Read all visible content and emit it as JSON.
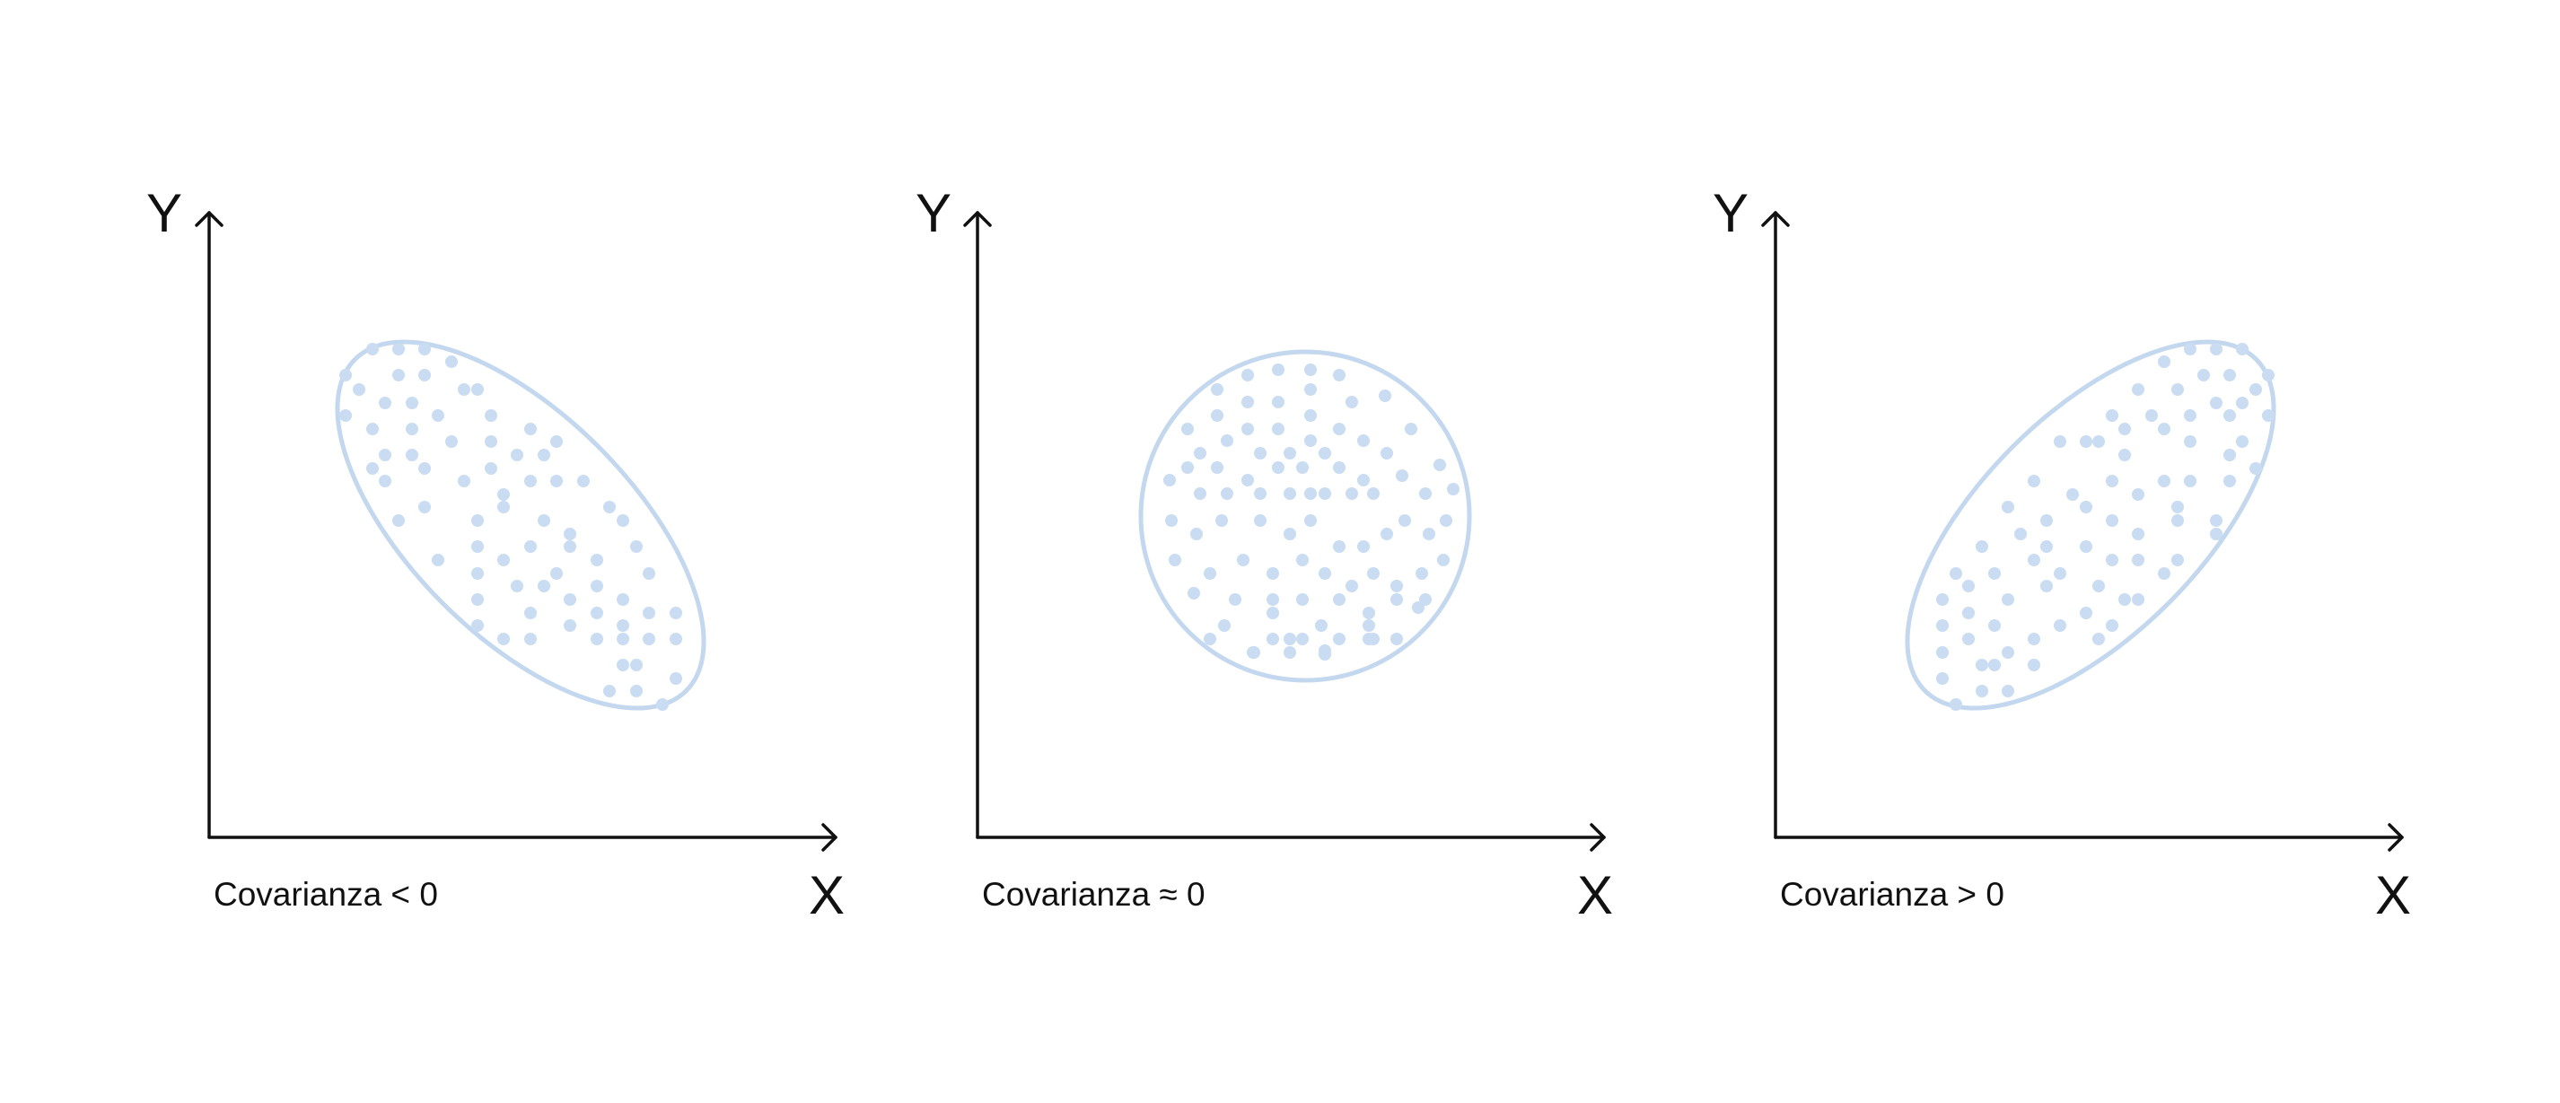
{
  "style": {
    "point_color": "#c9dcf2",
    "outline_color": "#c3d7ee",
    "axis_color": "#111111"
  },
  "panels": [
    {
      "id": "negative",
      "y_axis_label": "Y",
      "x_axis_label": "X",
      "caption": "Covarianza < 0",
      "cluster_shape": "ellipse",
      "trend": "negative"
    },
    {
      "id": "zero",
      "y_axis_label": "Y",
      "x_axis_label": "X",
      "caption": "Covarianza ≈ 0",
      "cluster_shape": "circle",
      "trend": "none"
    },
    {
      "id": "positive",
      "y_axis_label": "Y",
      "x_axis_label": "X",
      "caption": "Covarianza > 0",
      "cluster_shape": "ellipse",
      "trend": "positive"
    }
  ]
}
